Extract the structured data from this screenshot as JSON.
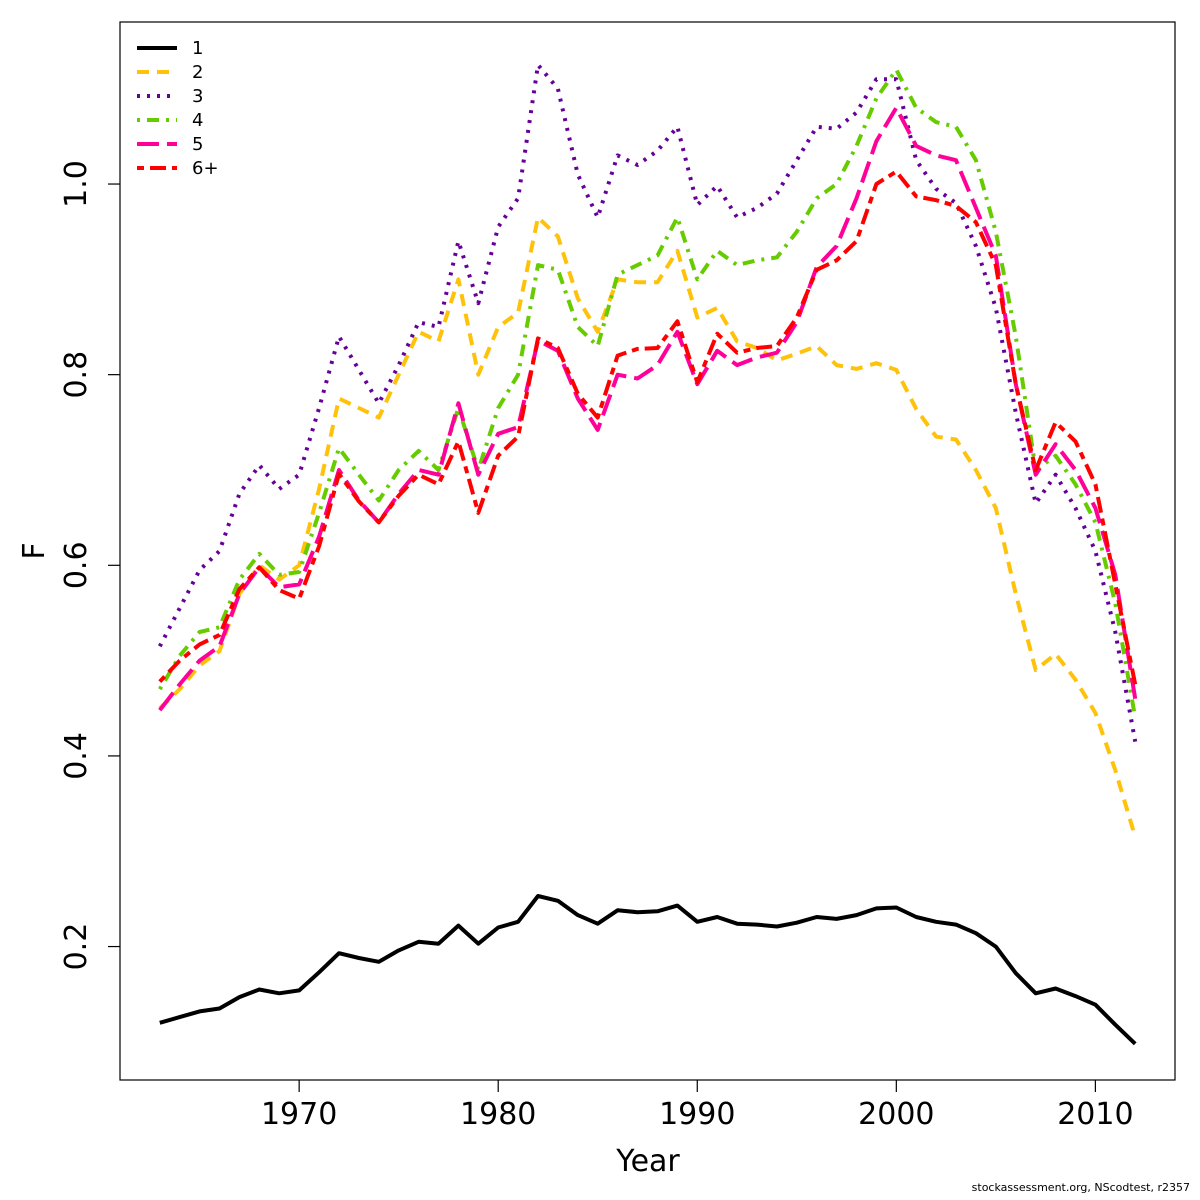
{
  "chart_data": {
    "type": "line",
    "xlabel": "Year",
    "ylabel": "F",
    "xlim": [
      1961,
      2014
    ],
    "ylim": [
      0.06,
      1.17
    ],
    "x_ticks": [
      1970,
      1980,
      1990,
      2000,
      2010
    ],
    "y_ticks": [
      0.2,
      0.4,
      0.6,
      0.8,
      1.0
    ],
    "y_tick_labels": [
      "0.2",
      "0.4",
      "0.6",
      "0.8",
      "1.0"
    ],
    "grid": false,
    "legend_position": "top-left",
    "x": [
      1963,
      1964,
      1965,
      1966,
      1967,
      1968,
      1969,
      1970,
      1971,
      1972,
      1973,
      1974,
      1975,
      1976,
      1977,
      1978,
      1979,
      1980,
      1981,
      1982,
      1983,
      1984,
      1985,
      1986,
      1987,
      1988,
      1989,
      1990,
      1991,
      1992,
      1993,
      1994,
      1995,
      1996,
      1997,
      1998,
      1999,
      2000,
      2001,
      2002,
      2003,
      2004,
      2005,
      2006,
      2007,
      2008,
      2009,
      2010,
      2011,
      2012
    ],
    "series": [
      {
        "name": "1",
        "color": "#000000",
        "dash": "solid",
        "values": [
          0.12,
          0.126,
          0.132,
          0.135,
          0.147,
          0.155,
          0.151,
          0.154,
          0.173,
          0.193,
          0.188,
          0.184,
          0.196,
          0.205,
          0.203,
          0.222,
          0.203,
          0.22,
          0.226,
          0.253,
          0.248,
          0.233,
          0.224,
          0.238,
          0.236,
          0.237,
          0.243,
          0.226,
          0.231,
          0.224,
          0.223,
          0.221,
          0.225,
          0.231,
          0.229,
          0.233,
          0.24,
          0.241,
          0.231,
          0.226,
          0.223,
          0.214,
          0.2,
          0.172,
          0.151,
          0.156,
          0.148,
          0.139,
          0.118,
          0.098
        ]
      },
      {
        "name": "2",
        "color": "#FFC20A",
        "dash": "dashed",
        "values": [
          0.45,
          0.47,
          0.495,
          0.51,
          0.57,
          0.6,
          0.585,
          0.6,
          0.68,
          0.775,
          0.765,
          0.755,
          0.8,
          0.845,
          0.835,
          0.9,
          0.8,
          0.85,
          0.865,
          0.965,
          0.945,
          0.88,
          0.845,
          0.9,
          0.897,
          0.897,
          0.93,
          0.86,
          0.87,
          0.835,
          0.828,
          0.815,
          0.822,
          0.83,
          0.81,
          0.806,
          0.812,
          0.805,
          0.764,
          0.735,
          0.732,
          0.7,
          0.66,
          0.57,
          0.49,
          0.507,
          0.48,
          0.445,
          0.385,
          0.315
        ]
      },
      {
        "name": "3",
        "color": "#660099",
        "dash": "dotted",
        "values": [
          0.515,
          0.555,
          0.595,
          0.615,
          0.675,
          0.705,
          0.68,
          0.695,
          0.765,
          0.84,
          0.805,
          0.77,
          0.81,
          0.855,
          0.85,
          0.94,
          0.875,
          0.955,
          0.985,
          1.125,
          1.1,
          1.01,
          0.965,
          1.03,
          1.02,
          1.035,
          1.06,
          0.978,
          0.998,
          0.965,
          0.975,
          0.99,
          1.025,
          1.06,
          1.058,
          1.075,
          1.11,
          1.11,
          1.025,
          0.995,
          0.98,
          0.935,
          0.87,
          0.76,
          0.665,
          0.695,
          0.66,
          0.615,
          0.53,
          0.415
        ]
      },
      {
        "name": "4",
        "color": "#66CC00",
        "dash": "dotdash",
        "values": [
          0.47,
          0.505,
          0.53,
          0.535,
          0.585,
          0.612,
          0.59,
          0.593,
          0.655,
          0.723,
          0.695,
          0.668,
          0.7,
          0.72,
          0.7,
          0.765,
          0.7,
          0.765,
          0.8,
          0.915,
          0.91,
          0.85,
          0.83,
          0.905,
          0.915,
          0.925,
          0.965,
          0.9,
          0.93,
          0.915,
          0.92,
          0.923,
          0.95,
          0.985,
          1.0,
          1.04,
          1.09,
          1.12,
          1.08,
          1.065,
          1.06,
          1.025,
          0.95,
          0.84,
          0.7,
          0.715,
          0.685,
          0.645,
          0.56,
          0.44
        ]
      },
      {
        "name": "5",
        "color": "#FF0099",
        "dash": "longdash",
        "values": [
          0.448,
          0.475,
          0.5,
          0.515,
          0.57,
          0.598,
          0.577,
          0.58,
          0.63,
          0.7,
          0.668,
          0.645,
          0.675,
          0.7,
          0.695,
          0.77,
          0.695,
          0.738,
          0.745,
          0.836,
          0.825,
          0.775,
          0.742,
          0.8,
          0.796,
          0.81,
          0.845,
          0.79,
          0.825,
          0.81,
          0.818,
          0.823,
          0.855,
          0.913,
          0.935,
          0.985,
          1.045,
          1.08,
          1.04,
          1.03,
          1.025,
          0.975,
          0.925,
          0.79,
          0.695,
          0.727,
          0.7,
          0.66,
          0.59,
          0.46
        ]
      },
      {
        "name": "6+",
        "color": "#FF0000",
        "dash": "twodash",
        "values": [
          0.478,
          0.5,
          0.517,
          0.527,
          0.575,
          0.598,
          0.574,
          0.565,
          0.62,
          0.696,
          0.667,
          0.645,
          0.673,
          0.695,
          0.685,
          0.73,
          0.655,
          0.715,
          0.735,
          0.838,
          0.828,
          0.78,
          0.755,
          0.82,
          0.827,
          0.828,
          0.856,
          0.792,
          0.843,
          0.823,
          0.828,
          0.83,
          0.86,
          0.91,
          0.92,
          0.94,
          1.0,
          1.013,
          0.987,
          0.983,
          0.977,
          0.96,
          0.915,
          0.79,
          0.7,
          0.75,
          0.73,
          0.685,
          0.58,
          0.475
        ]
      }
    ]
  },
  "footer": "stockassessment.org, NScodtest, r2357"
}
